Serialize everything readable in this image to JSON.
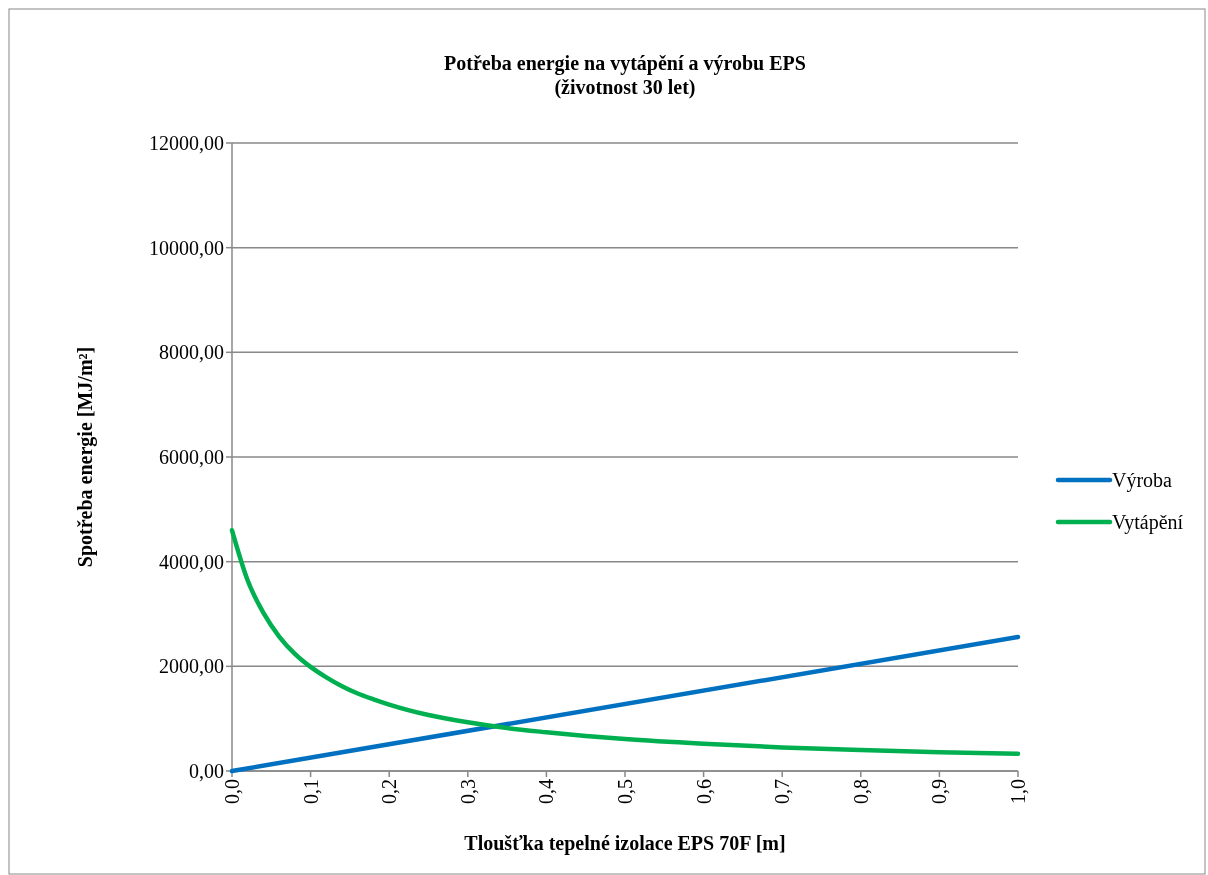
{
  "chart_data": {
    "type": "line",
    "title": "Potřeba energie na vytápění a výrobu EPS\n(životnost 30 let)",
    "xlabel": "Tloušťka tepelné izolace EPS 70F [m]",
    "ylabel": "Spotřeba energie [MJ/m²]",
    "xlim": [
      0,
      1
    ],
    "ylim": [
      0,
      12000
    ],
    "xticks": [
      {
        "value": 0,
        "label": "0,0"
      },
      {
        "value": 0.1,
        "label": "0,1"
      },
      {
        "value": 0.2,
        "label": "0,2"
      },
      {
        "value": 0.3,
        "label": "0,3"
      },
      {
        "value": 0.4,
        "label": "0,4"
      },
      {
        "value": 0.5,
        "label": "0,5"
      },
      {
        "value": 0.6,
        "label": "0,6"
      },
      {
        "value": 0.7,
        "label": "0,7"
      },
      {
        "value": 0.8,
        "label": "0,8"
      },
      {
        "value": 0.9,
        "label": "0,9"
      },
      {
        "value": 1,
        "label": "1,0"
      }
    ],
    "yticks": [
      {
        "value": 0,
        "label": "0,00"
      },
      {
        "value": 2000,
        "label": "2000,00"
      },
      {
        "value": 4000,
        "label": "4000,00"
      },
      {
        "value": 6000,
        "label": "6000,00"
      },
      {
        "value": 8000,
        "label": "8000,00"
      },
      {
        "value": 10000,
        "label": "10000,00"
      },
      {
        "value": 12000,
        "label": "12000,00"
      }
    ],
    "grid": "y",
    "legend": "right",
    "marker": "none",
    "line_style": "solid",
    "series": [
      {
        "name": "Výroba",
        "color": "#0070c0",
        "x": [
          0,
          1
        ],
        "values": [
          0,
          2560
        ]
      },
      {
        "name": "Vytápění",
        "color": "#00b050",
        "x": [
          0,
          0.02,
          0.04,
          0.06,
          0.08,
          0.1,
          0.12,
          0.14,
          0.16,
          0.18,
          0.2,
          0.25,
          0.3,
          0.35,
          0.4,
          0.45,
          0.5,
          0.6,
          0.7,
          0.8,
          0.9,
          1
        ],
        "values": [
          4600,
          3640,
          3020,
          2570,
          2240,
          1990,
          1790,
          1620,
          1480,
          1370,
          1270,
          1070,
          930,
          820,
          740,
          670,
          610,
          520,
          450,
          400,
          360,
          330
        ]
      }
    ]
  }
}
